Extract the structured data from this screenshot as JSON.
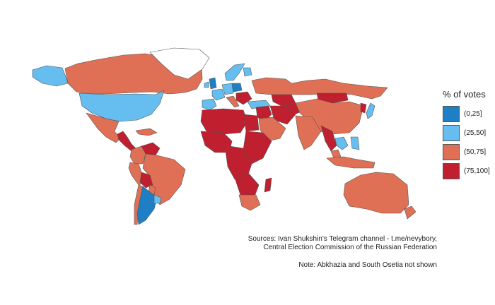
{
  "legend": {
    "title": "% of votes",
    "items": [
      {
        "label": "(0,25]",
        "color": "#1f7fc4"
      },
      {
        "label": "(25,50]",
        "color": "#66bdf0"
      },
      {
        "label": "(50,75]",
        "color": "#e07055"
      },
      {
        "label": "(75,100]",
        "color": "#bf1f2f"
      }
    ]
  },
  "caption": {
    "sources_line1": "Sources: Ivan Shukshin's Telegram channel - t.me/nevybory,",
    "sources_line2": "Central Election Commission of the Russian Federation",
    "note": "Note: Abkhazia and South Osetia not shown"
  },
  "map_data": {
    "regions": [
      {
        "name": "canada",
        "class": "(50,75]"
      },
      {
        "name": "alaska",
        "class": "(25,50]"
      },
      {
        "name": "greenland",
        "class": "no-data"
      },
      {
        "name": "united-states",
        "class": "(25,50]"
      },
      {
        "name": "mexico",
        "class": "(50,75]"
      },
      {
        "name": "central-america",
        "class": "(75,100]"
      },
      {
        "name": "caribbean",
        "class": "(50,75]"
      },
      {
        "name": "venezuela",
        "class": "(75,100]"
      },
      {
        "name": "colombia",
        "class": "(50,75]"
      },
      {
        "name": "brazil",
        "class": "(50,75]"
      },
      {
        "name": "peru",
        "class": "(50,75]"
      },
      {
        "name": "bolivia",
        "class": "(75,100]"
      },
      {
        "name": "paraguay",
        "class": "(50,75]"
      },
      {
        "name": "chile",
        "class": "(50,75]"
      },
      {
        "name": "argentina",
        "class": "(0,25]"
      },
      {
        "name": "uruguay",
        "class": "(25,50]"
      },
      {
        "name": "united-kingdom",
        "class": "(0,25]"
      },
      {
        "name": "ireland",
        "class": "(25,50]"
      },
      {
        "name": "iberia",
        "class": "(25,50]"
      },
      {
        "name": "france",
        "class": "(25,50]"
      },
      {
        "name": "germany",
        "class": "(25,50]"
      },
      {
        "name": "poland",
        "class": "(0,25]"
      },
      {
        "name": "scandinavia",
        "class": "(25,50]"
      },
      {
        "name": "finland",
        "class": "(25,50]"
      },
      {
        "name": "italy",
        "class": "(50,75]"
      },
      {
        "name": "balkans",
        "class": "(75,100]"
      },
      {
        "name": "turkey",
        "class": "(25,50]"
      },
      {
        "name": "russia",
        "class": "(50,75]"
      },
      {
        "name": "mongolia",
        "class": "(75,100]"
      },
      {
        "name": "kazakhstan",
        "class": "(75,100]"
      },
      {
        "name": "central-asia",
        "class": "(75,100]"
      },
      {
        "name": "china",
        "class": "(50,75]"
      },
      {
        "name": "korea",
        "class": "(75,100]"
      },
      {
        "name": "japan",
        "class": "(25,50]"
      },
      {
        "name": "middle-east",
        "class": "(75,100]"
      },
      {
        "name": "arabia",
        "class": "(50,75]"
      },
      {
        "name": "iran",
        "class": "(75,100]"
      },
      {
        "name": "india",
        "class": "(50,75]"
      },
      {
        "name": "indochina",
        "class": "(75,100]"
      },
      {
        "name": "thailand",
        "class": "(25,50]"
      },
      {
        "name": "malaysia",
        "class": "(50,75]"
      },
      {
        "name": "indonesia",
        "class": "(50,75]"
      },
      {
        "name": "philippines",
        "class": "(25,50]"
      },
      {
        "name": "australia",
        "class": "(50,75]"
      },
      {
        "name": "new-zealand",
        "class": "(50,75]"
      },
      {
        "name": "north-africa",
        "class": "(75,100]"
      },
      {
        "name": "egypt",
        "class": "(75,100]"
      },
      {
        "name": "west-africa",
        "class": "(75,100]"
      },
      {
        "name": "east-africa",
        "class": "(75,100]"
      },
      {
        "name": "central-africa",
        "class": "(75,100]"
      },
      {
        "name": "southern-africa",
        "class": "(75,100]"
      },
      {
        "name": "south-africa",
        "class": "(50,75]"
      },
      {
        "name": "madagascar",
        "class": "(75,100]"
      }
    ]
  }
}
